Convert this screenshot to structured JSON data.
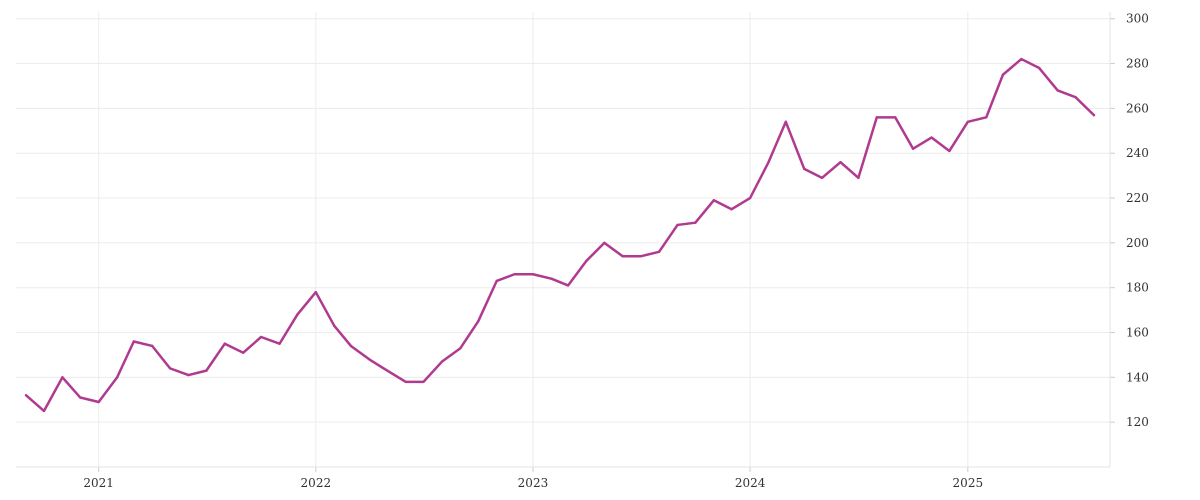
{
  "chart_data": {
    "type": "line",
    "title": "",
    "xlabel": "",
    "ylabel": "",
    "x_tick_labels": [
      "2021",
      "2022",
      "2023",
      "2024",
      "2025"
    ],
    "x_tick_dates": [
      "2021-01-01",
      "2022-01-01",
      "2023-01-01",
      "2024-01-01",
      "2025-01-01"
    ],
    "y_ticks": [
      120,
      140,
      160,
      180,
      200,
      220,
      240,
      260,
      280,
      300
    ],
    "xlim": [
      "2020-08-15",
      "2025-08-28"
    ],
    "ylim": [
      100,
      303
    ],
    "y_axis_side": "right",
    "grid": true,
    "legend": "none",
    "series": [
      {
        "color": "#b03a8f",
        "points": [
          [
            "2020-09-01",
            132
          ],
          [
            "2020-10-01",
            125
          ],
          [
            "2020-11-01",
            140
          ],
          [
            "2020-12-01",
            131
          ],
          [
            "2021-01-01",
            129
          ],
          [
            "2021-02-01",
            140
          ],
          [
            "2021-03-01",
            156
          ],
          [
            "2021-04-01",
            154
          ],
          [
            "2021-05-01",
            144
          ],
          [
            "2021-06-01",
            141
          ],
          [
            "2021-07-01",
            143
          ],
          [
            "2021-08-01",
            155
          ],
          [
            "2021-09-01",
            151
          ],
          [
            "2021-10-01",
            158
          ],
          [
            "2021-11-01",
            155
          ],
          [
            "2021-12-01",
            168
          ],
          [
            "2022-01-01",
            178
          ],
          [
            "2022-02-01",
            163
          ],
          [
            "2022-03-01",
            154
          ],
          [
            "2022-04-01",
            148
          ],
          [
            "2022-05-01",
            143
          ],
          [
            "2022-06-01",
            138
          ],
          [
            "2022-07-01",
            138
          ],
          [
            "2022-08-01",
            147
          ],
          [
            "2022-09-01",
            153
          ],
          [
            "2022-10-01",
            165
          ],
          [
            "2022-11-01",
            183
          ],
          [
            "2022-12-01",
            186
          ],
          [
            "2023-01-01",
            186
          ],
          [
            "2023-02-01",
            184
          ],
          [
            "2023-03-01",
            181
          ],
          [
            "2023-04-01",
            192
          ],
          [
            "2023-05-01",
            200
          ],
          [
            "2023-06-01",
            194
          ],
          [
            "2023-07-01",
            194
          ],
          [
            "2023-08-01",
            196
          ],
          [
            "2023-09-01",
            208
          ],
          [
            "2023-10-01",
            209
          ],
          [
            "2023-11-01",
            219
          ],
          [
            "2023-12-01",
            215
          ],
          [
            "2024-01-01",
            220
          ],
          [
            "2024-02-01",
            236
          ],
          [
            "2024-03-01",
            254
          ],
          [
            "2024-04-01",
            233
          ],
          [
            "2024-05-01",
            229
          ],
          [
            "2024-06-01",
            236
          ],
          [
            "2024-07-01",
            229
          ],
          [
            "2024-08-01",
            256
          ],
          [
            "2024-09-01",
            256
          ],
          [
            "2024-10-01",
            242
          ],
          [
            "2024-11-01",
            247
          ],
          [
            "2024-12-01",
            241
          ],
          [
            "2025-01-01",
            254
          ],
          [
            "2025-02-01",
            256
          ],
          [
            "2025-03-01",
            275
          ],
          [
            "2025-04-01",
            282
          ],
          [
            "2025-05-01",
            278
          ],
          [
            "2025-06-01",
            268
          ],
          [
            "2025-07-01",
            265
          ],
          [
            "2025-08-01",
            257
          ]
        ]
      }
    ]
  }
}
